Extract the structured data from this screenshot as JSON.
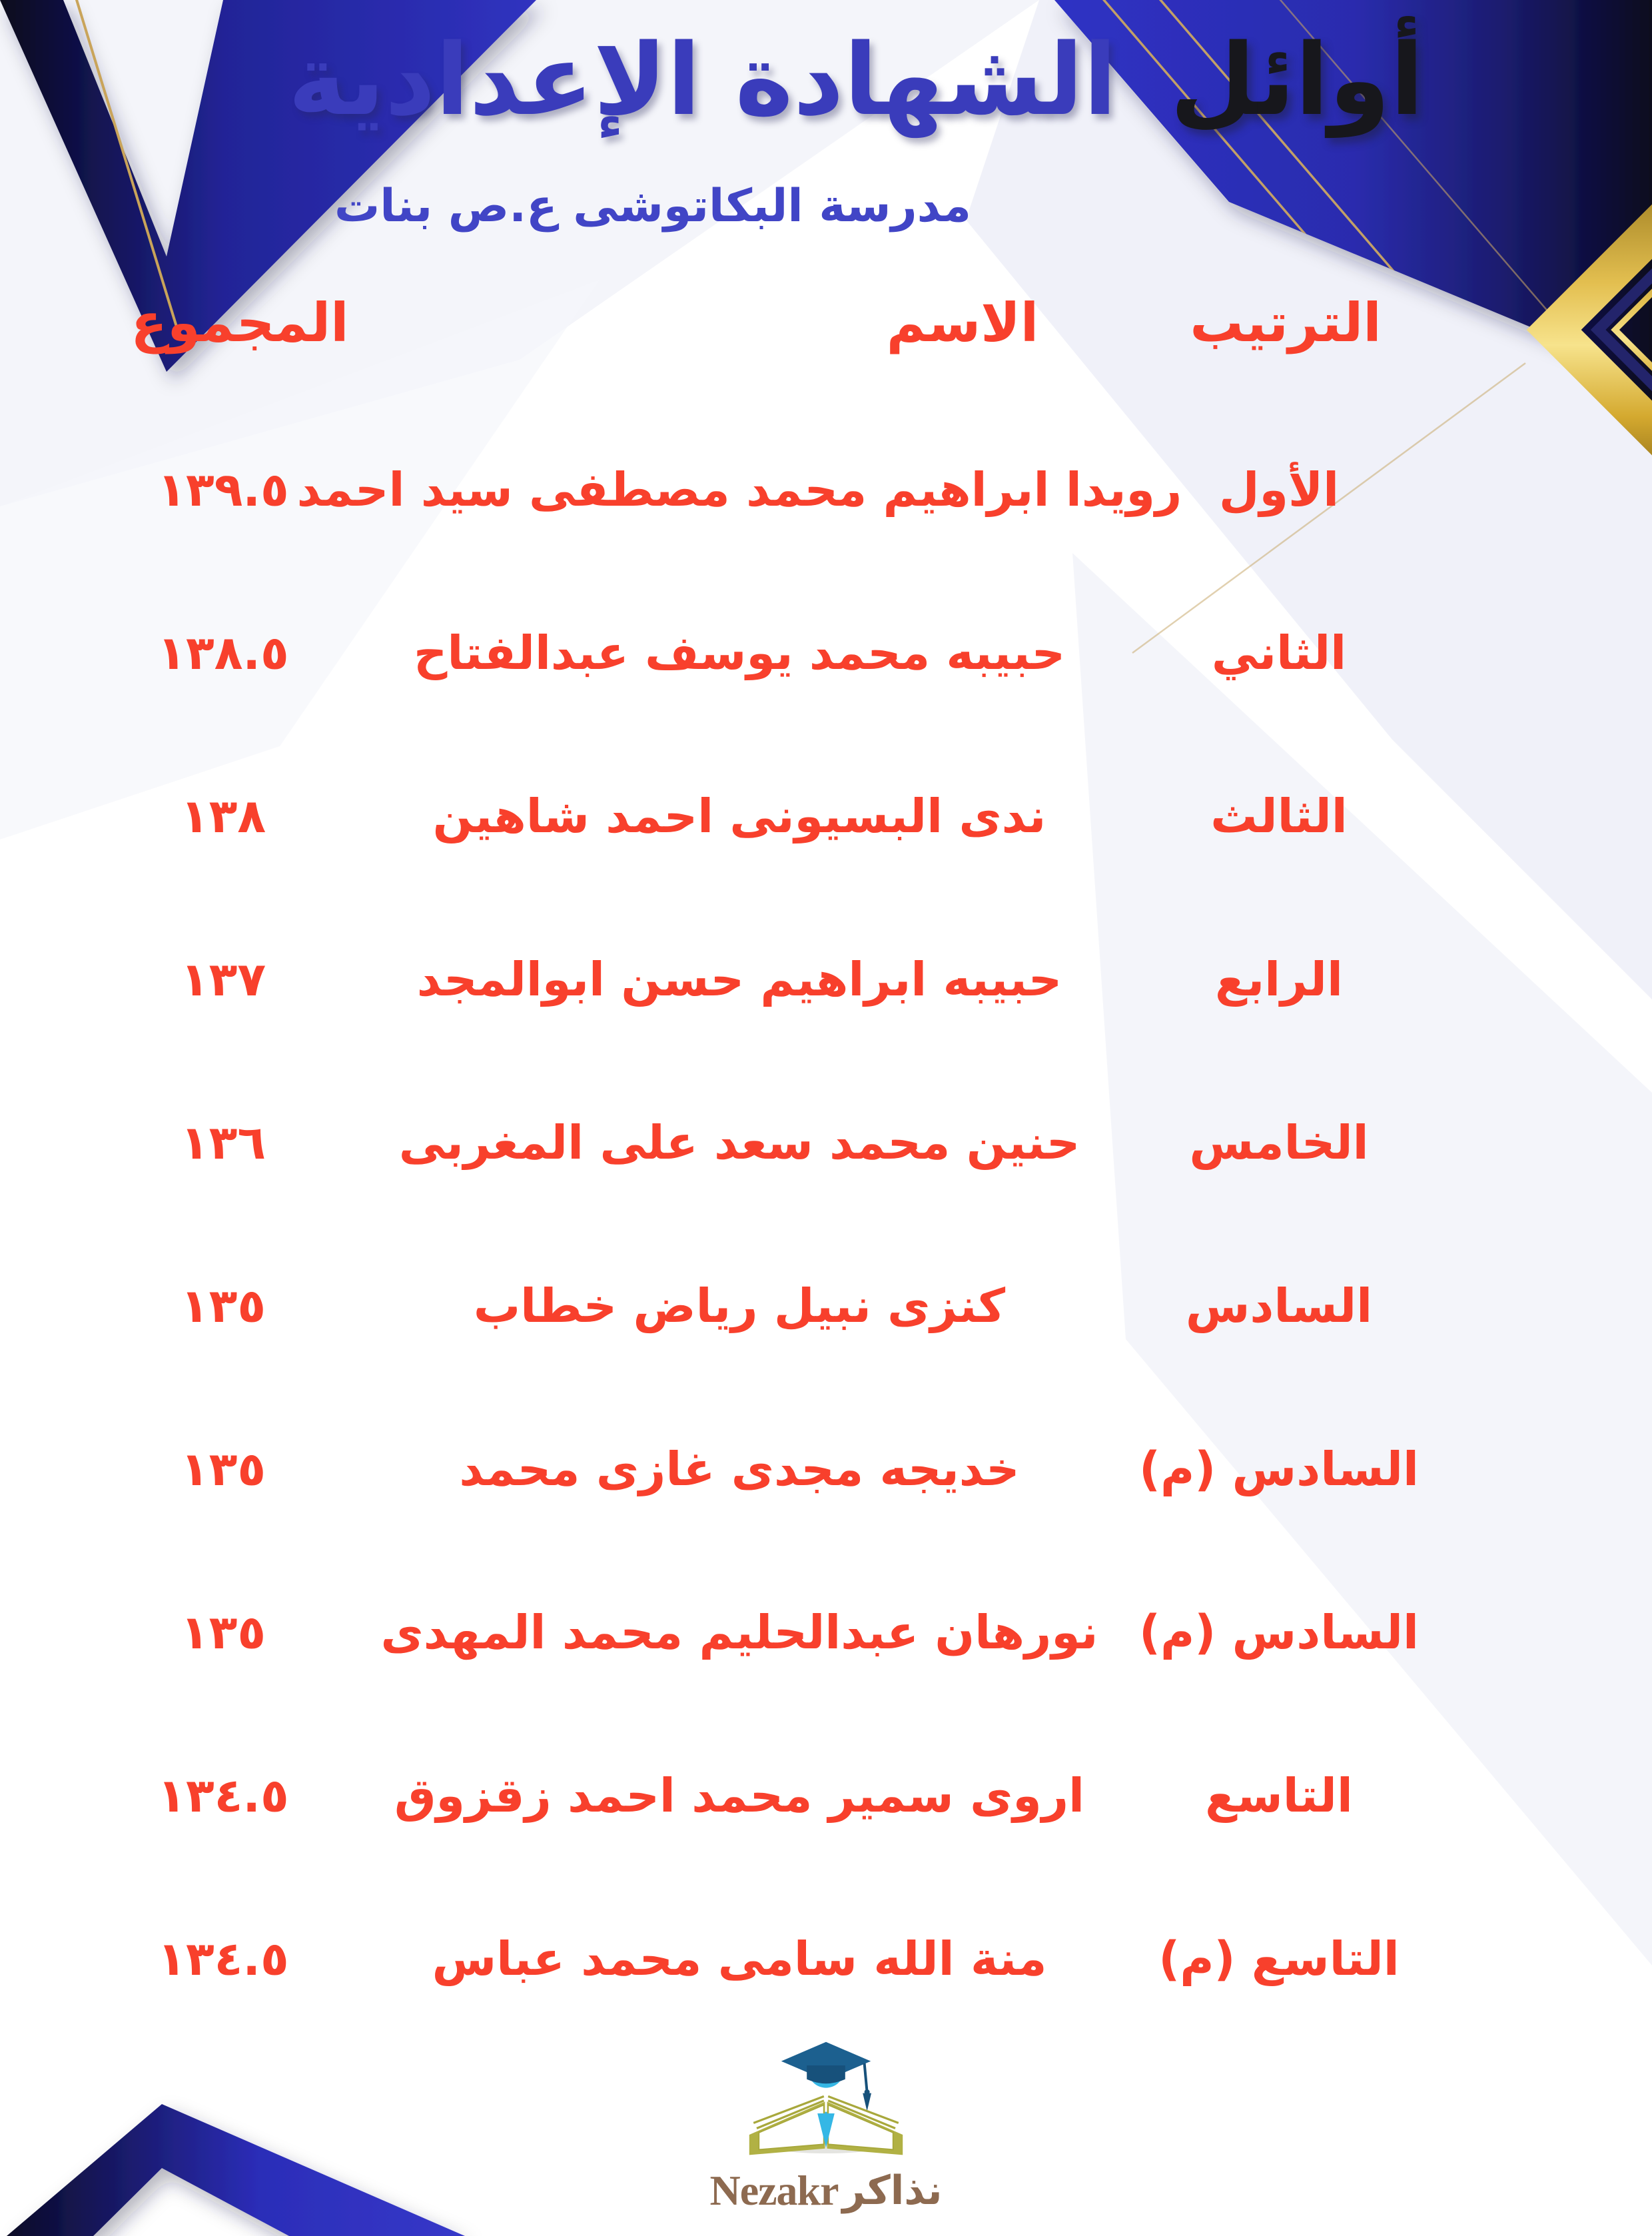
{
  "header": {
    "title_black": "أوائل",
    "title_blue": "الشهادة الإعدادية",
    "subtitle": "مدرسة البكاتوشى ع.ص بنات"
  },
  "table": {
    "columns": {
      "rank": "الترتيب",
      "name": "الاسم",
      "total": "المجموع"
    },
    "rows": [
      {
        "rank": "الأول",
        "name": "رويدا ابراهيم محمد مصطفى سيد احمد",
        "total": "١٣٩.٥"
      },
      {
        "rank": "الثاني",
        "name": "حبيبه محمد يوسف عبدالفتاح",
        "total": "١٣٨.٥"
      },
      {
        "rank": "الثالث",
        "name": "ندى البسيونى احمد شاهين",
        "total": "١٣٨"
      },
      {
        "rank": "الرابع",
        "name": "حبيبه ابراهيم حسن ابوالمجد",
        "total": "١٣٧"
      },
      {
        "rank": "الخامس",
        "name": "حنين محمد سعد على المغربى",
        "total": "١٣٦"
      },
      {
        "rank": "السادس",
        "name": "كنزى نبيل رياض خطاب",
        "total": "١٣٥"
      },
      {
        "rank": "السادس (م)",
        "name": "خديجه مجدى غازى محمد",
        "total": "١٣٥"
      },
      {
        "rank": "السادس (م)",
        "name": "نورهان عبدالحليم محمد المهدى",
        "total": "١٣٥"
      },
      {
        "rank": "التاسع",
        "name": "اروى سمير محمد احمد زقزوق",
        "total": "١٣٤.٥"
      },
      {
        "rank": "التاسع (م)",
        "name": "منة الله سامى محمد عباس",
        "total": "١٣٤.٥"
      }
    ]
  },
  "footer": {
    "logo_icon": "graduation-student-open-book-icon",
    "logo_text_arabic": "نذاكر",
    "logo_text_latin": "Nezakr"
  },
  "colors": {
    "red": "#f8402c",
    "title_blue": "#3a3cbb",
    "subtitle_blue": "#4145c6",
    "accent_blue": "#2c2ebc",
    "dark_navy": "#07071e",
    "gold": "#d9b44a",
    "logo_head_blue": "#35b7e5",
    "logo_cap_blue": "#1c608f",
    "logo_book_olive": "#b1b144",
    "logo_text_brown": "#8d6a50"
  }
}
